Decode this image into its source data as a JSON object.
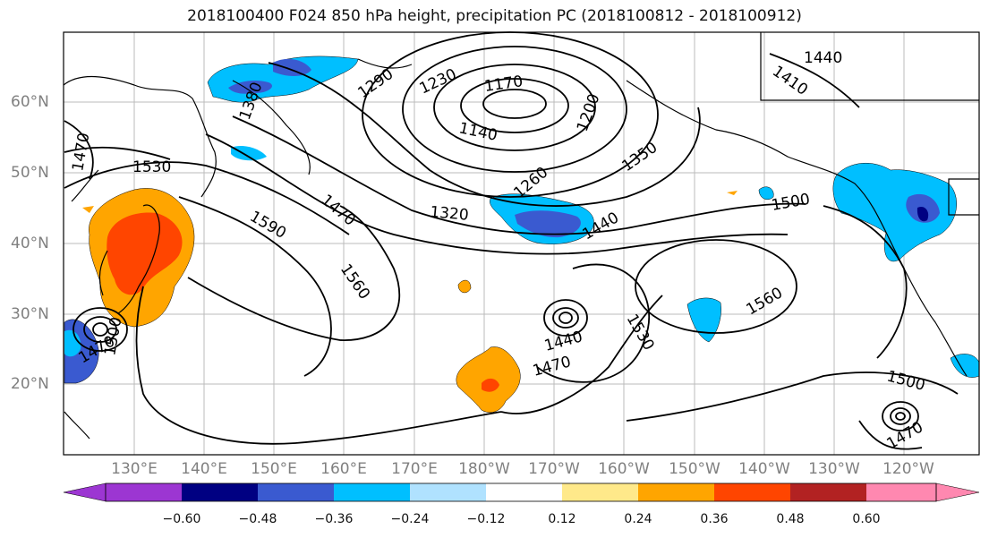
{
  "title": "2018100400 F024 850 hPa height, precipitation PC (2018100812 - 2018100912)",
  "map": {
    "lat_labels": [
      "60°N",
      "50°N",
      "40°N",
      "30°N",
      "20°N"
    ],
    "lon_labels": [
      "130°E",
      "140°E",
      "150°E",
      "160°E",
      "170°E",
      "180°W",
      "170°W",
      "160°W",
      "150°W",
      "140°W",
      "130°W",
      "120°W"
    ],
    "contour_labels": [
      "1440",
      "1410",
      "1380",
      "1230",
      "1170",
      "1140",
      "1200",
      "1290",
      "1350",
      "1260",
      "1320",
      "1440",
      "1500",
      "1470",
      "1530",
      "1590",
      "1470",
      "1560",
      "1560",
      "1530",
      "1440",
      "1470",
      "1500",
      "1500",
      "1470",
      "1470"
    ],
    "land_color": "#ffffff",
    "grid": true
  },
  "colorbar": {
    "colors": [
      "#9c36d2",
      "#000082",
      "#3a5ad0",
      "#00bfff",
      "#b0e2ff",
      "#ffffff",
      "#ffe98a",
      "#ffa500",
      "#ff4500",
      "#b22222",
      "#ff88b0"
    ],
    "tick_labels": [
      "−0.60",
      "−0.48",
      "−0.36",
      "−0.24",
      "−0.12",
      "0.12",
      "0.24",
      "0.36",
      "0.48",
      "0.60"
    ]
  }
}
